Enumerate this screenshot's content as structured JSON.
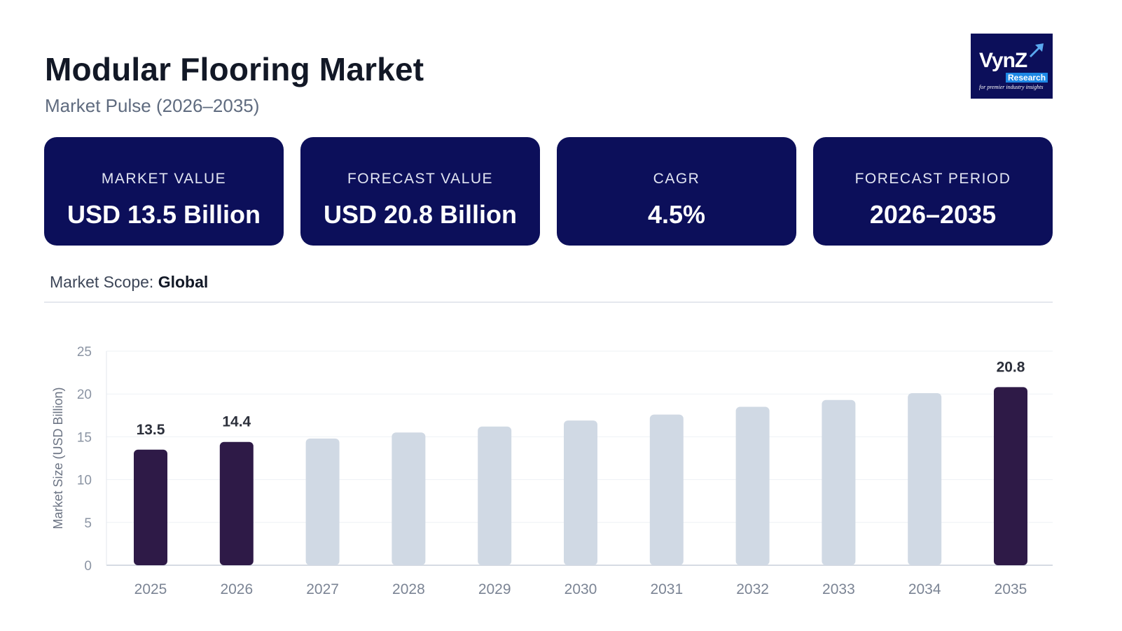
{
  "header": {
    "title": "Modular Flooring Market",
    "subtitle": "Market Pulse (2026–2035)"
  },
  "logo": {
    "name": "VynZ",
    "sub": "Research",
    "tagline": "for premier industry insights"
  },
  "cards": [
    {
      "label": "MARKET VALUE",
      "value": "USD 13.5 Billion"
    },
    {
      "label": "FORECAST VALUE",
      "value": "USD 20.8 Billion"
    },
    {
      "label": "CAGR",
      "value": "4.5%"
    },
    {
      "label": "FORECAST PERIOD",
      "value": "2026–2035"
    }
  ],
  "scope": {
    "label": "Market Scope:",
    "value": "Global"
  },
  "colors": {
    "card_bg": "#0c0f5a",
    "highlight_bar": "#2e1a47",
    "muted_bar": "#d0d9e4"
  },
  "chart_data": {
    "type": "bar",
    "ylabel": "Market Size (USD Billion)",
    "xlabel": "",
    "ylim": [
      0,
      25
    ],
    "yticks": [
      0,
      5,
      10,
      15,
      20,
      25
    ],
    "grid": true,
    "categories": [
      "2025",
      "2026",
      "2027",
      "2028",
      "2029",
      "2030",
      "2031",
      "2032",
      "2033",
      "2034",
      "2035"
    ],
    "values": [
      13.5,
      14.4,
      14.8,
      15.5,
      16.2,
      16.9,
      17.6,
      18.5,
      19.3,
      20.1,
      20.8
    ],
    "highlighted": [
      "2025",
      "2026",
      "2035"
    ],
    "data_labels": {
      "2025": "13.5",
      "2026": "14.4",
      "2035": "20.8"
    }
  }
}
